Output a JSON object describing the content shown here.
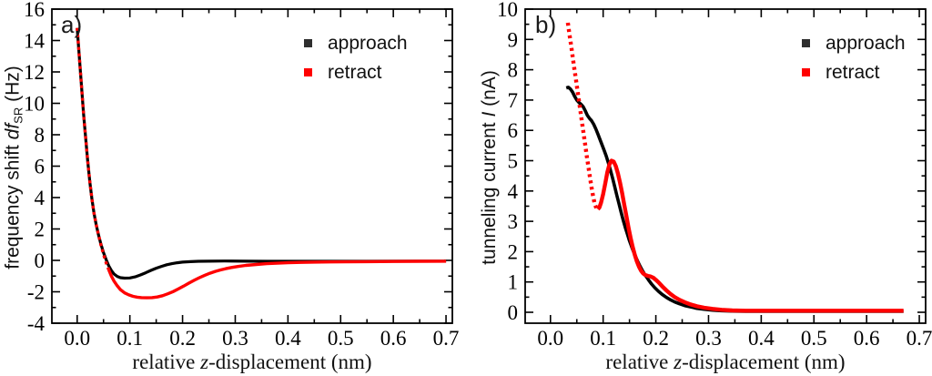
{
  "chart_data": [
    {
      "type": "line",
      "panel_label": "a)",
      "xlabel_parts": {
        "prefix": "relative ",
        "var": "z",
        "suffix": "-displacement (nm)"
      },
      "ylabel_parts": {
        "prefix": "frequency shift ",
        "var": "df",
        "sub": "SR",
        "suffix": " (Hz)"
      },
      "xlim": [
        -0.048,
        0.712
      ],
      "ylim": [
        -4,
        16
      ],
      "x_ticks": {
        "values": [
          0.0,
          0.1,
          0.2,
          0.3,
          0.4,
          0.5,
          0.6,
          0.7
        ],
        "labels": [
          "0.0",
          "0.1",
          "0.2",
          "0.3",
          "0.4",
          "0.5",
          "0.6",
          "0.7"
        ]
      },
      "x_minor_step": 0.05,
      "y_ticks": {
        "values": [
          16,
          14,
          12,
          10,
          8,
          6,
          4,
          2,
          0,
          -2,
          -4
        ],
        "labels": [
          "16",
          "14",
          "12",
          "10",
          "8",
          "6",
          "4",
          "2",
          "0",
          "-2",
          "-4"
        ]
      },
      "y_minor_step": 1,
      "grid": false,
      "legend": [
        {
          "label": "approach",
          "color": "#2e2e2e"
        },
        {
          "label": "retract",
          "color": "#ff0000"
        }
      ],
      "series": [
        {
          "name": "approach",
          "color": "#000000",
          "width": 3.2,
          "dotted_until": null,
          "points": [
            [
              0.0,
              14.8
            ],
            [
              0.004,
              13.0
            ],
            [
              0.008,
              11.2
            ],
            [
              0.012,
              9.4
            ],
            [
              0.016,
              7.8
            ],
            [
              0.02,
              6.3
            ],
            [
              0.024,
              5.0
            ],
            [
              0.028,
              3.9
            ],
            [
              0.032,
              3.0
            ],
            [
              0.036,
              2.3
            ],
            [
              0.04,
              1.7
            ],
            [
              0.045,
              1.05
            ],
            [
              0.05,
              0.5
            ],
            [
              0.055,
              0.05
            ],
            [
              0.06,
              -0.35
            ],
            [
              0.065,
              -0.65
            ],
            [
              0.07,
              -0.87
            ],
            [
              0.076,
              -1.02
            ],
            [
              0.082,
              -1.1
            ],
            [
              0.09,
              -1.13
            ],
            [
              0.1,
              -1.12
            ],
            [
              0.11,
              -1.05
            ],
            [
              0.12,
              -0.93
            ],
            [
              0.13,
              -0.79
            ],
            [
              0.14,
              -0.64
            ],
            [
              0.15,
              -0.5
            ],
            [
              0.16,
              -0.38
            ],
            [
              0.17,
              -0.28
            ],
            [
              0.18,
              -0.21
            ],
            [
              0.19,
              -0.15
            ],
            [
              0.2,
              -0.11
            ],
            [
              0.215,
              -0.08
            ],
            [
              0.23,
              -0.06
            ],
            [
              0.25,
              -0.05
            ],
            [
              0.28,
              -0.04
            ],
            [
              0.32,
              -0.05
            ],
            [
              0.36,
              -0.06
            ],
            [
              0.4,
              -0.06
            ],
            [
              0.45,
              -0.06
            ],
            [
              0.5,
              -0.06
            ],
            [
              0.55,
              -0.06
            ],
            [
              0.6,
              -0.05
            ],
            [
              0.65,
              -0.05
            ],
            [
              0.7,
              -0.05
            ]
          ]
        },
        {
          "name": "retract",
          "color": "#ff0000",
          "width": 3.4,
          "dotted_until": 0.06,
          "points": [
            [
              0.0,
              14.8
            ],
            [
              0.004,
              13.0
            ],
            [
              0.008,
              11.2
            ],
            [
              0.012,
              9.4
            ],
            [
              0.016,
              7.8
            ],
            [
              0.02,
              6.3
            ],
            [
              0.024,
              5.0
            ],
            [
              0.028,
              3.9
            ],
            [
              0.032,
              3.0
            ],
            [
              0.036,
              2.3
            ],
            [
              0.04,
              1.7
            ],
            [
              0.045,
              1.0
            ],
            [
              0.05,
              0.4
            ],
            [
              0.055,
              -0.15
            ],
            [
              0.06,
              -0.6
            ],
            [
              0.065,
              -1.0
            ],
            [
              0.07,
              -1.32
            ],
            [
              0.076,
              -1.62
            ],
            [
              0.082,
              -1.86
            ],
            [
              0.09,
              -2.07
            ],
            [
              0.098,
              -2.2
            ],
            [
              0.106,
              -2.29
            ],
            [
              0.114,
              -2.34
            ],
            [
              0.122,
              -2.37
            ],
            [
              0.132,
              -2.38
            ],
            [
              0.142,
              -2.37
            ],
            [
              0.152,
              -2.33
            ],
            [
              0.162,
              -2.25
            ],
            [
              0.172,
              -2.13
            ],
            [
              0.182,
              -1.99
            ],
            [
              0.192,
              -1.82
            ],
            [
              0.202,
              -1.64
            ],
            [
              0.212,
              -1.45
            ],
            [
              0.222,
              -1.27
            ],
            [
              0.232,
              -1.1
            ],
            [
              0.242,
              -0.95
            ],
            [
              0.252,
              -0.82
            ],
            [
              0.262,
              -0.7
            ],
            [
              0.272,
              -0.61
            ],
            [
              0.282,
              -0.53
            ],
            [
              0.292,
              -0.46
            ],
            [
              0.305,
              -0.39
            ],
            [
              0.32,
              -0.32
            ],
            [
              0.34,
              -0.26
            ],
            [
              0.36,
              -0.21
            ],
            [
              0.38,
              -0.18
            ],
            [
              0.4,
              -0.15
            ],
            [
              0.425,
              -0.13
            ],
            [
              0.45,
              -0.11
            ],
            [
              0.48,
              -0.1
            ],
            [
              0.51,
              -0.09
            ],
            [
              0.55,
              -0.08
            ],
            [
              0.6,
              -0.07
            ],
            [
              0.65,
              -0.06
            ],
            [
              0.7,
              -0.05
            ]
          ]
        }
      ]
    },
    {
      "type": "line",
      "panel_label": "b)",
      "xlabel_parts": {
        "prefix": "relative ",
        "var": "z",
        "suffix": "-displacement (nm)"
      },
      "ylabel_parts": {
        "prefix": "tunneling current ",
        "var": "I",
        "sub": "",
        "suffix": " (nA)"
      },
      "xlim": [
        -0.048,
        0.712
      ],
      "ylim": [
        -0.36,
        10.0
      ],
      "x_ticks": {
        "values": [
          0.0,
          0.1,
          0.2,
          0.3,
          0.4,
          0.5,
          0.6,
          0.7
        ],
        "labels": [
          "0.0",
          "0.1",
          "0.2",
          "0.3",
          "0.4",
          "0.5",
          "0.6",
          "0.7"
        ]
      },
      "x_minor_step": 0.05,
      "y_ticks": {
        "values": [
          10,
          9,
          8,
          7,
          6,
          5,
          4,
          3,
          2,
          1,
          0
        ],
        "labels": [
          "10",
          "9",
          "8",
          "7",
          "6",
          "5",
          "4",
          "3",
          "2",
          "1",
          "0"
        ]
      },
      "y_minor_step": 0.5,
      "grid": false,
      "legend": [
        {
          "label": "approach",
          "color": "#2e2e2e"
        },
        {
          "label": "retract",
          "color": "#ff0000"
        }
      ],
      "series": [
        {
          "name": "approach",
          "color": "#000000",
          "width": 3.6,
          "dotted_until": null,
          "points": [
            [
              0.03,
              7.4
            ],
            [
              0.034,
              7.42
            ],
            [
              0.038,
              7.36
            ],
            [
              0.042,
              7.26
            ],
            [
              0.046,
              7.12
            ],
            [
              0.05,
              7.0
            ],
            [
              0.054,
              6.92
            ],
            [
              0.058,
              6.86
            ],
            [
              0.062,
              6.78
            ],
            [
              0.066,
              6.65
            ],
            [
              0.07,
              6.5
            ],
            [
              0.074,
              6.4
            ],
            [
              0.078,
              6.32
            ],
            [
              0.082,
              6.2
            ],
            [
              0.086,
              6.05
            ],
            [
              0.09,
              5.88
            ],
            [
              0.094,
              5.7
            ],
            [
              0.098,
              5.52
            ],
            [
              0.102,
              5.34
            ],
            [
              0.106,
              5.14
            ],
            [
              0.11,
              4.92
            ],
            [
              0.114,
              4.68
            ],
            [
              0.118,
              4.42
            ],
            [
              0.122,
              4.14
            ],
            [
              0.126,
              3.86
            ],
            [
              0.13,
              3.58
            ],
            [
              0.134,
              3.3
            ],
            [
              0.138,
              3.04
            ],
            [
              0.142,
              2.8
            ],
            [
              0.146,
              2.58
            ],
            [
              0.15,
              2.36
            ],
            [
              0.155,
              2.12
            ],
            [
              0.16,
              1.9
            ],
            [
              0.165,
              1.7
            ],
            [
              0.17,
              1.52
            ],
            [
              0.175,
              1.36
            ],
            [
              0.18,
              1.22
            ],
            [
              0.186,
              1.07
            ],
            [
              0.192,
              0.93
            ],
            [
              0.198,
              0.81
            ],
            [
              0.205,
              0.69
            ],
            [
              0.212,
              0.59
            ],
            [
              0.22,
              0.49
            ],
            [
              0.228,
              0.41
            ],
            [
              0.236,
              0.34
            ],
            [
              0.245,
              0.28
            ],
            [
              0.255,
              0.22
            ],
            [
              0.265,
              0.18
            ],
            [
              0.278,
              0.13
            ],
            [
              0.292,
              0.1
            ],
            [
              0.308,
              0.07
            ],
            [
              0.325,
              0.05
            ],
            [
              0.345,
              0.04
            ],
            [
              0.37,
              0.03
            ],
            [
              0.4,
              0.03
            ],
            [
              0.44,
              0.03
            ],
            [
              0.48,
              0.03
            ],
            [
              0.52,
              0.03
            ],
            [
              0.56,
              0.03
            ],
            [
              0.6,
              0.03
            ],
            [
              0.64,
              0.03
            ],
            [
              0.67,
              0.03
            ]
          ]
        },
        {
          "name": "retract",
          "color": "#ff0000",
          "width": 4.4,
          "dotted_until": 0.088,
          "points": [
            [
              0.033,
              9.55
            ],
            [
              0.036,
              9.18
            ],
            [
              0.039,
              8.82
            ],
            [
              0.042,
              8.45
            ],
            [
              0.045,
              8.08
            ],
            [
              0.048,
              7.72
            ],
            [
              0.051,
              7.35
            ],
            [
              0.054,
              6.98
            ],
            [
              0.057,
              6.62
            ],
            [
              0.06,
              6.25
            ],
            [
              0.063,
              5.88
            ],
            [
              0.066,
              5.52
            ],
            [
              0.069,
              5.15
            ],
            [
              0.072,
              4.8
            ],
            [
              0.075,
              4.45
            ],
            [
              0.078,
              4.12
            ],
            [
              0.081,
              3.82
            ],
            [
              0.084,
              3.58
            ],
            [
              0.087,
              3.44
            ],
            [
              0.09,
              3.4
            ],
            [
              0.093,
              3.46
            ],
            [
              0.096,
              3.62
            ],
            [
              0.1,
              3.9
            ],
            [
              0.104,
              4.25
            ],
            [
              0.108,
              4.62
            ],
            [
              0.112,
              4.88
            ],
            [
              0.116,
              5.0
            ],
            [
              0.12,
              4.97
            ],
            [
              0.124,
              4.82
            ],
            [
              0.128,
              4.58
            ],
            [
              0.132,
              4.28
            ],
            [
              0.136,
              3.94
            ],
            [
              0.14,
              3.56
            ],
            [
              0.144,
              3.18
            ],
            [
              0.148,
              2.8
            ],
            [
              0.152,
              2.46
            ],
            [
              0.156,
              2.16
            ],
            [
              0.16,
              1.9
            ],
            [
              0.164,
              1.68
            ],
            [
              0.168,
              1.5
            ],
            [
              0.172,
              1.37
            ],
            [
              0.176,
              1.28
            ],
            [
              0.18,
              1.23
            ],
            [
              0.185,
              1.2
            ],
            [
              0.19,
              1.18
            ],
            [
              0.195,
              1.14
            ],
            [
              0.2,
              1.07
            ],
            [
              0.206,
              0.97
            ],
            [
              0.212,
              0.86
            ],
            [
              0.22,
              0.72
            ],
            [
              0.228,
              0.6
            ],
            [
              0.236,
              0.5
            ],
            [
              0.245,
              0.41
            ],
            [
              0.255,
              0.33
            ],
            [
              0.266,
              0.26
            ],
            [
              0.278,
              0.2
            ],
            [
              0.292,
              0.15
            ],
            [
              0.308,
              0.11
            ],
            [
              0.325,
              0.08
            ],
            [
              0.345,
              0.06
            ],
            [
              0.37,
              0.05
            ],
            [
              0.4,
              0.05
            ],
            [
              0.44,
              0.05
            ],
            [
              0.48,
              0.05
            ],
            [
              0.52,
              0.05
            ],
            [
              0.56,
              0.05
            ],
            [
              0.6,
              0.05
            ],
            [
              0.64,
              0.05
            ],
            [
              0.67,
              0.05
            ]
          ]
        }
      ]
    }
  ]
}
